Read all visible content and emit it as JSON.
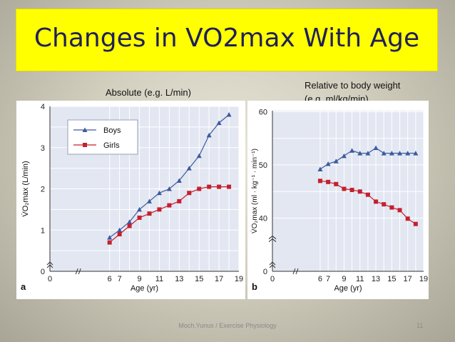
{
  "slide": {
    "title": "Changes in VO2max With Age",
    "caption_a": "Absolute (e.g. L/min)",
    "caption_b_line1": "Relative to body weight",
    "caption_b_line2": "(e.g. ml/kg/min)",
    "footer": "Moch.Yunus / Exercise Physiology",
    "page_number": "11"
  },
  "colors": {
    "boys": "#3d5a9e",
    "girls": "#c5202e",
    "title_bg": "#ffff00",
    "title_text": "#1f1f5c"
  },
  "chart_data": [
    {
      "type": "line",
      "panel_label": "a",
      "xlabel": "Age (yr)",
      "ylabel": "V̇O₂max (L/min)",
      "xlim": [
        0,
        19
      ],
      "ylim": [
        0,
        4
      ],
      "x_ticks": [
        0,
        6,
        7,
        9,
        11,
        13,
        15,
        17,
        19
      ],
      "y_ticks": [
        0,
        1,
        2,
        3,
        4
      ],
      "grid": true,
      "legend_position": "top-left",
      "series": [
        {
          "name": "Boys",
          "marker": "triangle",
          "x": [
            6,
            7,
            8,
            9,
            10,
            11,
            12,
            13,
            14,
            15,
            16,
            17,
            18
          ],
          "values": [
            0.82,
            1.0,
            1.2,
            1.5,
            1.7,
            1.9,
            2.0,
            2.2,
            2.5,
            2.8,
            3.3,
            3.6,
            3.8
          ]
        },
        {
          "name": "Girls",
          "marker": "square",
          "x": [
            6,
            7,
            8,
            9,
            10,
            11,
            12,
            13,
            14,
            15,
            16,
            17,
            18
          ],
          "values": [
            0.7,
            0.9,
            1.1,
            1.3,
            1.4,
            1.5,
            1.6,
            1.7,
            1.9,
            2.0,
            2.05,
            2.05,
            2.05
          ]
        }
      ]
    },
    {
      "type": "line",
      "panel_label": "b",
      "xlabel": "Age (yr)",
      "ylabel": "V̇O₂max (ml · kg⁻¹ · min⁻¹)",
      "xlim": [
        0,
        19
      ],
      "ylim": [
        30,
        60
      ],
      "x_ticks": [
        0,
        6,
        7,
        9,
        11,
        13,
        15,
        17,
        19
      ],
      "y_ticks": [
        0,
        40,
        50,
        60
      ],
      "y_axis_break": true,
      "grid": true,
      "series": [
        {
          "name": "Boys",
          "marker": "triangle",
          "x": [
            6,
            7,
            8,
            9,
            10,
            11,
            12,
            13,
            14,
            15,
            16,
            17,
            18
          ],
          "values": [
            49.2,
            50.2,
            50.7,
            51.7,
            52.7,
            52.2,
            52.2,
            53.2,
            52.2,
            52.2,
            52.2,
            52.2,
            52.2
          ]
        },
        {
          "name": "Girls",
          "marker": "square",
          "x": [
            6,
            7,
            8,
            9,
            10,
            11,
            12,
            13,
            14,
            15,
            16,
            17,
            18
          ],
          "values": [
            47.0,
            46.8,
            46.4,
            45.5,
            45.3,
            45.0,
            44.4,
            43.1,
            42.6,
            42.0,
            41.5,
            39.9,
            38.9
          ]
        }
      ]
    }
  ]
}
